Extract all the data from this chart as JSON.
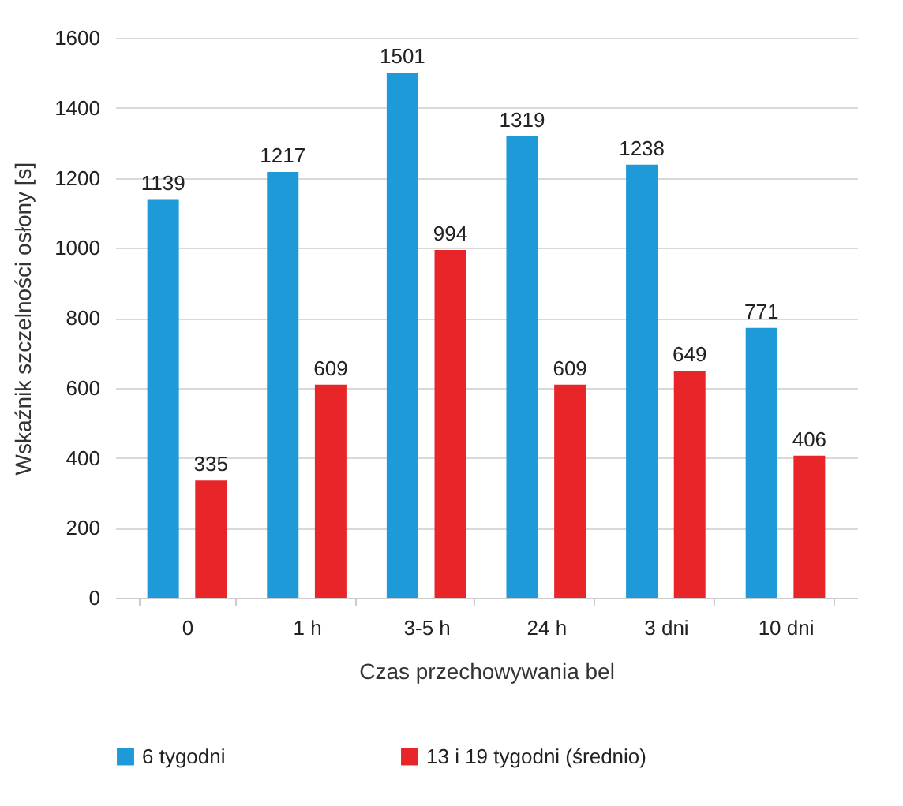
{
  "chart_data": {
    "type": "bar",
    "xlabel": "Czas przechowywania bel",
    "ylabel": "Wskaźnik szczelności osłony [s]",
    "categories": [
      "0",
      "1 h",
      "3-5 h",
      "24 h",
      "3 dni",
      "10 dni"
    ],
    "series": [
      {
        "name": "6 tygodni",
        "color": "#1f9ad8",
        "values": [
          1139,
          1217,
          1501,
          1319,
          1238,
          771
        ]
      },
      {
        "name": "13 i 19 tygodni (średnio)",
        "color": "#e8262a",
        "values": [
          335,
          609,
          994,
          609,
          649,
          406
        ]
      }
    ],
    "ylim": [
      0,
      1600
    ],
    "yticks": [
      0,
      200,
      400,
      600,
      800,
      1000,
      1200,
      1400,
      1600
    ],
    "grid": "y",
    "legend": "bottom",
    "data_labels": true
  }
}
